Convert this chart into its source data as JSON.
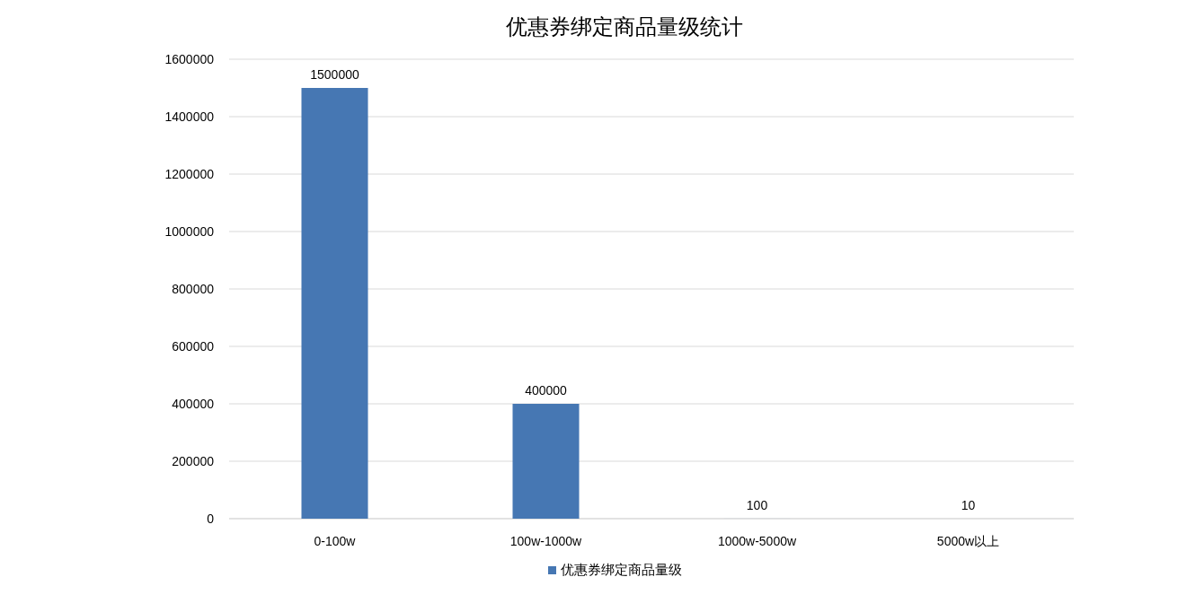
{
  "chart_data": {
    "type": "bar",
    "title": "优惠券绑定商品量级统计",
    "categories": [
      "0-100w",
      "100w-1000w",
      "1000w-5000w",
      "5000w以上"
    ],
    "series": [
      {
        "name": "优惠券绑定商品量级",
        "color": "#4677b3",
        "values": [
          1500000,
          400000,
          100,
          10
        ]
      }
    ],
    "ylim": [
      0,
      1600000
    ],
    "yticks": [
      0,
      200000,
      400000,
      600000,
      800000,
      1000000,
      1200000,
      1400000,
      1600000
    ],
    "grid": "y",
    "legend": "bottom",
    "data_labels": true
  }
}
